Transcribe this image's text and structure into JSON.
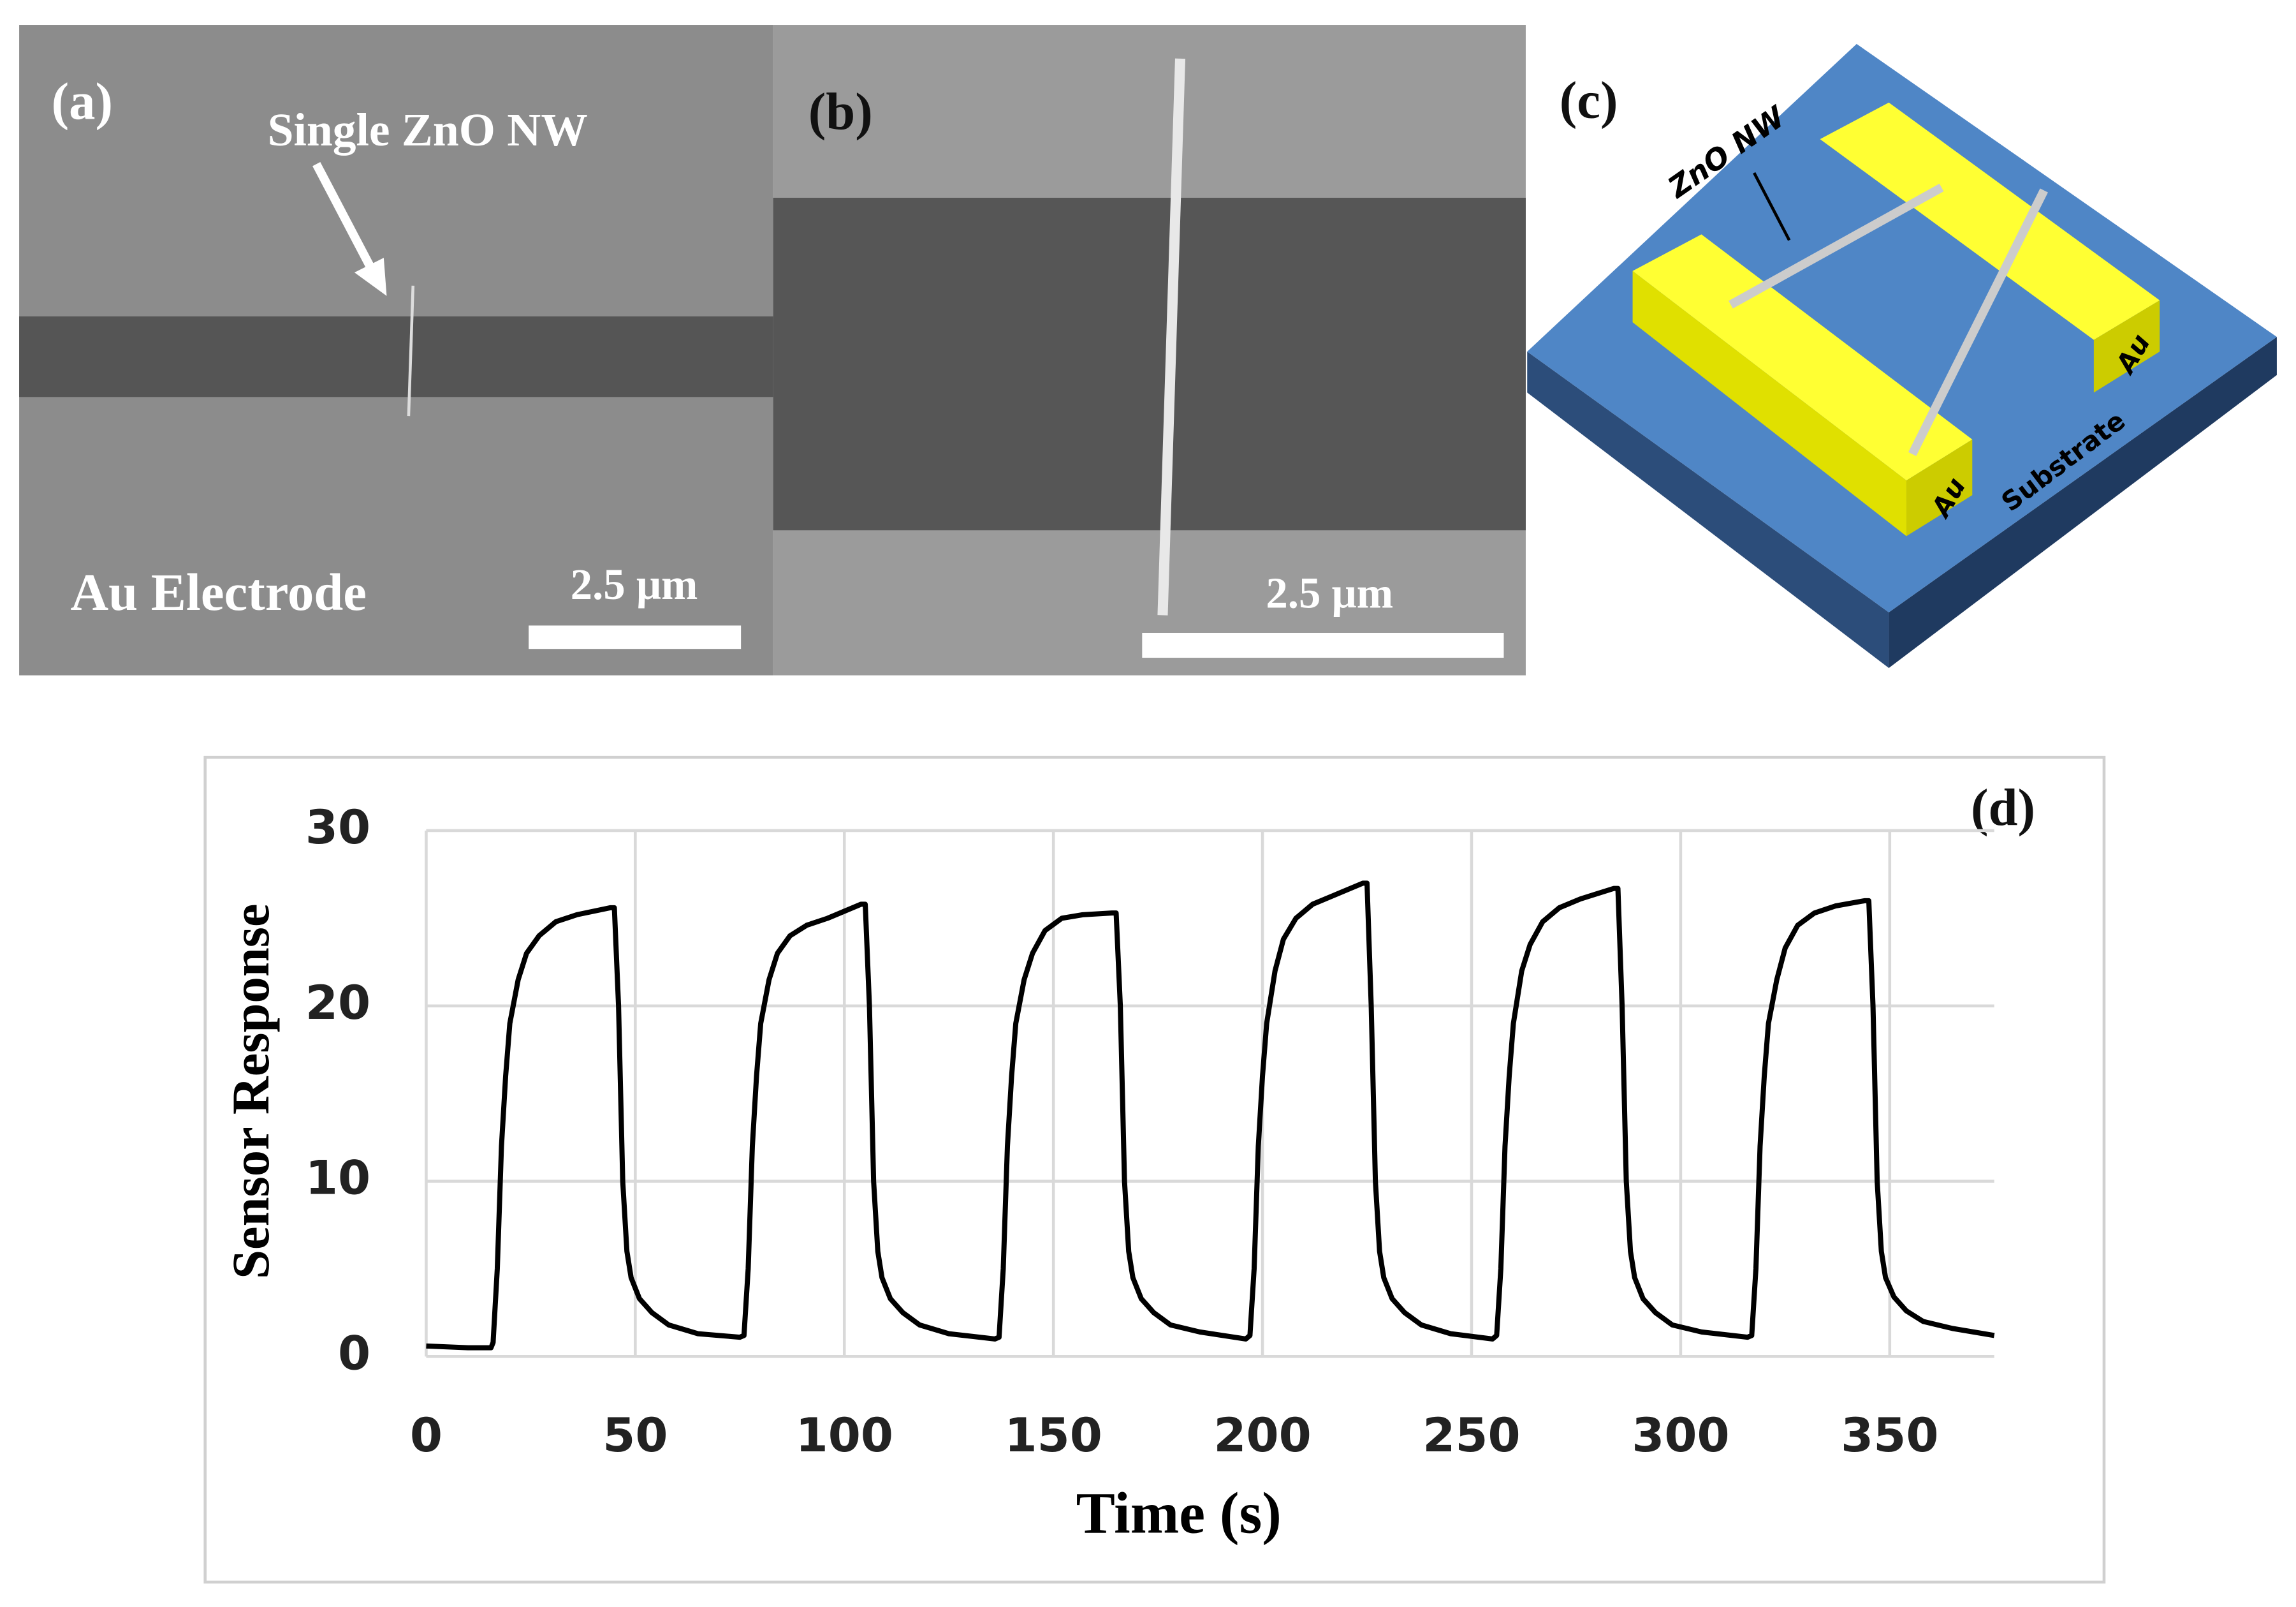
{
  "panels": {
    "a": {
      "label": "(a)",
      "annotation": "Single ZnO NW",
      "caption": "Au Electrode",
      "scale": "2.5 μm"
    },
    "b": {
      "label": "(b)",
      "scale": "2.5 μm"
    },
    "c": {
      "label": "(c)",
      "wire": "ZnO NW",
      "electrode_left": "Au",
      "electrode_right": "Au",
      "substrate": "Substrate"
    }
  },
  "chart_data": {
    "type": "line",
    "annotation": "(d)",
    "xlabel": "Time (s)",
    "ylabel": "Sensor Response",
    "color": "#000000",
    "grid": true,
    "xlim": [
      0,
      375
    ],
    "ylim": [
      0,
      30
    ],
    "xticks": [
      0,
      50,
      100,
      150,
      200,
      250,
      300,
      350
    ],
    "yticks": [
      0,
      10,
      20,
      30
    ],
    "x": [
      0,
      10,
      15.5,
      16,
      17,
      18,
      19,
      20,
      22,
      24,
      27,
      31,
      36,
      44,
      45,
      46,
      47,
      48,
      49,
      51,
      54,
      58,
      65,
      75,
      76,
      77,
      78,
      79,
      80,
      82,
      84,
      87,
      91,
      96,
      104,
      105,
      106,
      107,
      108,
      109,
      111,
      114,
      118,
      125,
      136,
      137,
      138,
      139,
      140,
      141,
      143,
      145,
      148,
      152,
      157,
      164,
      165,
      166,
      167,
      168,
      169,
      171,
      174,
      178,
      185,
      196,
      197,
      198,
      199,
      200,
      201,
      203,
      205,
      208,
      212,
      217,
      224,
      225,
      226,
      227,
      228,
      229,
      231,
      234,
      238,
      245,
      255,
      256,
      257,
      258,
      259,
      260,
      262,
      264,
      267,
      271,
      276,
      284,
      285,
      286,
      287,
      288,
      289,
      291,
      294,
      298,
      305,
      316,
      317,
      318,
      319,
      320,
      321,
      323,
      325,
      328,
      332,
      337,
      344,
      345,
      346,
      347,
      348,
      349,
      351,
      354,
      358,
      365,
      375
    ],
    "values": [
      0.6,
      0.5,
      0.5,
      0.8,
      5,
      12,
      16,
      19,
      21.5,
      23,
      24,
      24.8,
      25.2,
      25.6,
      25.6,
      20,
      10,
      6,
      4.5,
      3.3,
      2.5,
      1.8,
      1.3,
      1.1,
      1.2,
      5,
      12,
      16,
      19,
      21.5,
      23,
      24,
      24.6,
      25,
      25.8,
      25.8,
      20,
      10,
      6,
      4.5,
      3.3,
      2.5,
      1.8,
      1.3,
      1.0,
      1.1,
      5,
      12,
      16,
      19,
      21.5,
      23,
      24.3,
      25,
      25.2,
      25.3,
      25.3,
      20,
      10,
      6,
      4.5,
      3.3,
      2.5,
      1.8,
      1.4,
      1.0,
      1.2,
      5,
      12,
      16,
      19,
      22,
      23.8,
      25,
      25.8,
      26.3,
      27,
      27,
      20,
      10,
      6,
      4.5,
      3.3,
      2.5,
      1.8,
      1.3,
      1.0,
      1.2,
      5,
      12,
      16,
      19,
      22,
      23.5,
      24.8,
      25.6,
      26.1,
      26.7,
      26.7,
      20,
      10,
      6,
      4.5,
      3.3,
      2.5,
      1.8,
      1.4,
      1.1,
      1.2,
      5,
      12,
      16,
      19,
      21.5,
      23.3,
      24.6,
      25.3,
      25.7,
      26,
      26,
      20,
      10,
      6,
      4.5,
      3.4,
      2.6,
      2,
      1.6,
      1.2
    ]
  }
}
